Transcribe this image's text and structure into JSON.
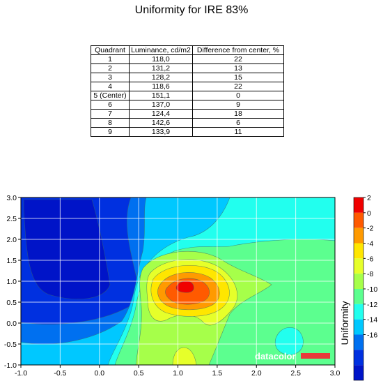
{
  "title": "Uniformity for IRE 83%",
  "table": {
    "headers": [
      "Quadrant",
      "Luminance, cd/m2",
      "Difference from center, %"
    ],
    "rows": [
      [
        "1",
        "118,0",
        "22"
      ],
      [
        "2",
        "131,2",
        "13"
      ],
      [
        "3",
        "128,2",
        "15"
      ],
      [
        "4",
        "118,6",
        "22"
      ],
      [
        "5 (Center)",
        "151,1",
        "0"
      ],
      [
        "6",
        "137,0",
        "9"
      ],
      [
        "7",
        "124,4",
        "18"
      ],
      [
        "8",
        "142,6",
        "6"
      ],
      [
        "9",
        "133,9",
        "11"
      ]
    ]
  },
  "chart_data": {
    "type": "heatmap",
    "subtype": "filled-contour",
    "xlim": [
      -1.0,
      3.0
    ],
    "ylim": [
      -1.0,
      3.0
    ],
    "x_ticks": [
      "-1.0",
      "-0.5",
      "0.0",
      "0.5",
      "1.0",
      "1.5",
      "2.0",
      "2.5",
      "3.0"
    ],
    "y_ticks": [
      "-1.0",
      "-0.5",
      "0.0",
      "0.5",
      "1.0",
      "1.5",
      "2.0",
      "2.5",
      "3.0"
    ],
    "grid": true,
    "colorbar": {
      "label": "Uniformity",
      "ticks": [
        "2",
        "0",
        "-2",
        "-4",
        "-6",
        "-8",
        "-10",
        "-12",
        "-14",
        "-16"
      ],
      "levels": [
        {
          "from": 0,
          "to": 2,
          "color": "#f00000"
        },
        {
          "from": -2,
          "to": 0,
          "color": "#ff5a00"
        },
        {
          "from": -4,
          "to": -2,
          "color": "#ff9a00"
        },
        {
          "from": -6,
          "to": -4,
          "color": "#ffe600"
        },
        {
          "from": -8,
          "to": -6,
          "color": "#e6ff2a"
        },
        {
          "from": -10,
          "to": -8,
          "color": "#a6ff4a"
        },
        {
          "from": -12,
          "to": -10,
          "color": "#5cff8f"
        },
        {
          "from": -14,
          "to": -12,
          "color": "#22ffee"
        },
        {
          "from": -16,
          "to": -14,
          "color": "#00c8ff"
        },
        {
          "from": -18,
          "to": -16,
          "color": "#0070f0"
        },
        {
          "from": -20,
          "to": -18,
          "color": "#0030e0"
        },
        {
          "from": -22,
          "to": -20,
          "color": "#0014c8"
        }
      ]
    },
    "peak": {
      "x": 1.1,
      "y": 0.9,
      "value": 0
    },
    "watermark": "datacolor"
  }
}
